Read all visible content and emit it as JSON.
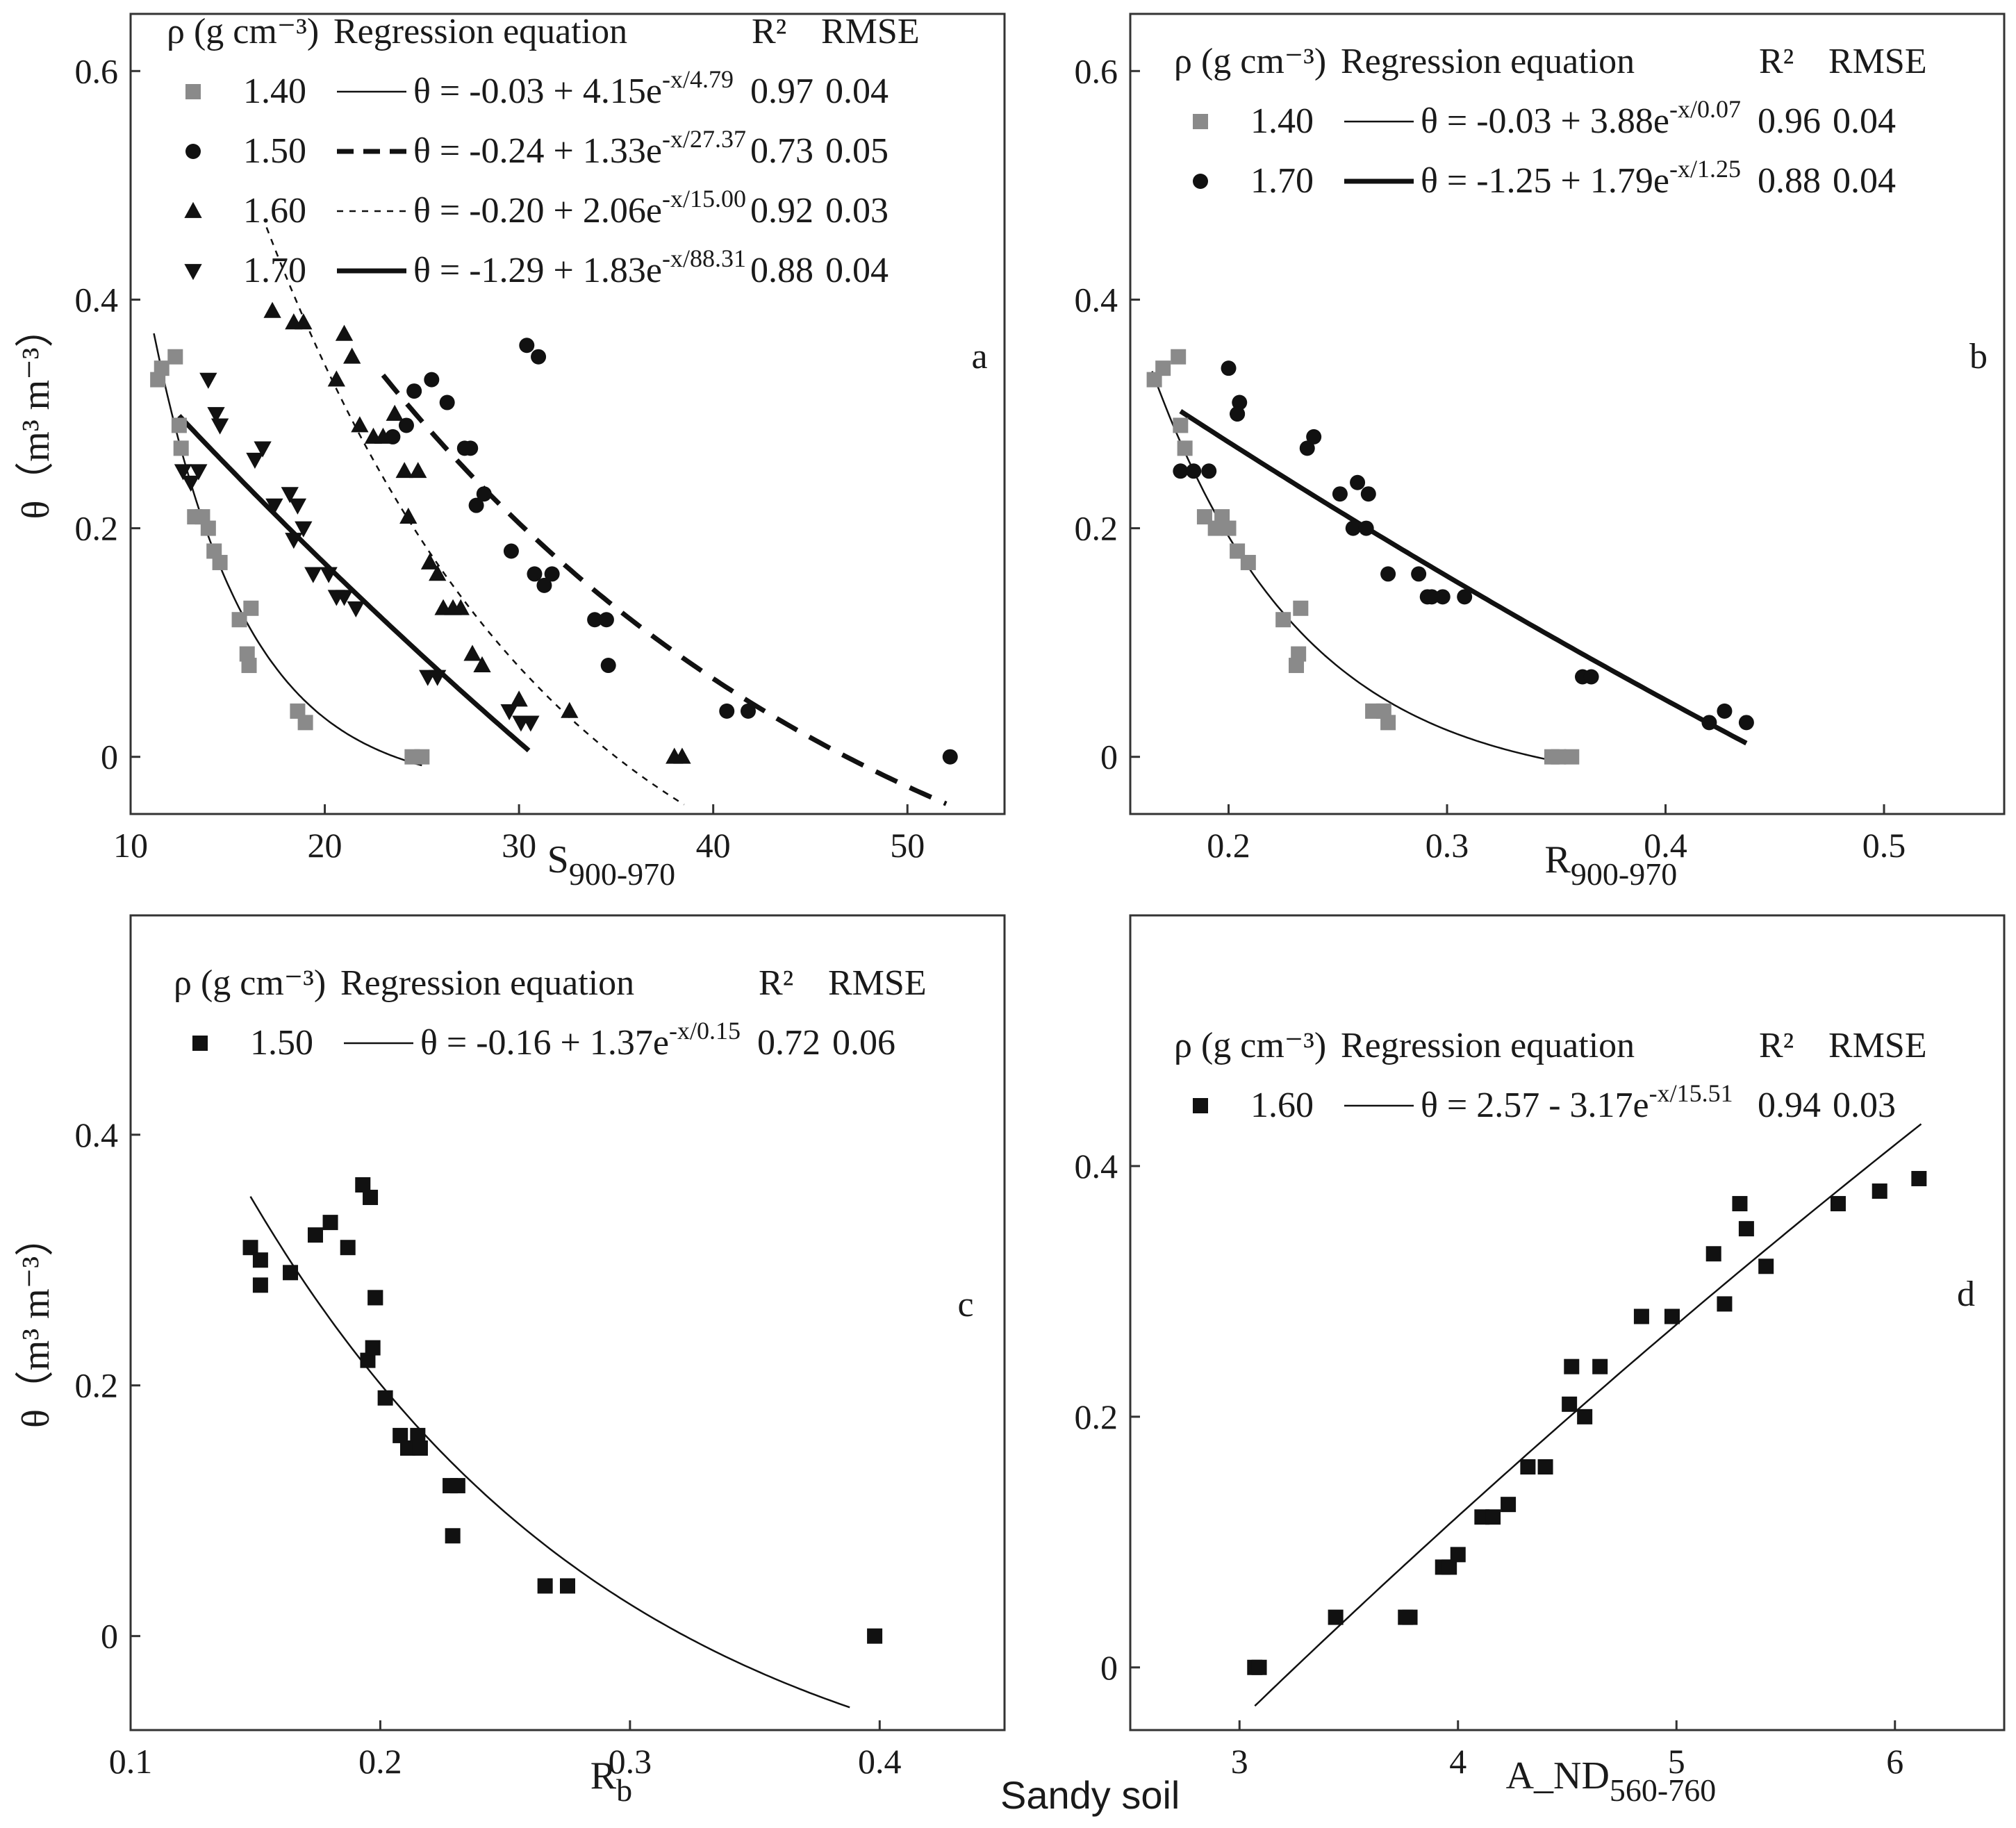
{
  "caption": "Sandy soil",
  "colors": {
    "gray": "#8a8a8a",
    "black": "#111111",
    "axis": "#333333"
  },
  "chart_data": [
    {
      "id": "a",
      "type": "scatter",
      "panel_label": "a",
      "xlabel": "S",
      "xlabel_sub": "900-970",
      "ylabel": "θ（m³ m⁻³）",
      "xlim": [
        10,
        55
      ],
      "ylim": [
        -0.05,
        0.65
      ],
      "xticks": [
        10,
        20,
        30,
        40,
        50
      ],
      "yticks": [
        0,
        0.2,
        0.4,
        0.6
      ],
      "legend_header": {
        "rho": "ρ (g cm⁻³)",
        "eq": "Regression equation",
        "r2": "R²",
        "rmse": "RMSE"
      },
      "series": [
        {
          "name": "1.40",
          "marker": "square",
          "color": "#8a8a8a",
          "line": "thin",
          "eq_text": "θ = -0.03 + 4.15e",
          "eq_exp": "-x/4.79",
          "r2": "0.97",
          "rmse": "0.04",
          "fit": {
            "a": -0.03,
            "b": 4.15,
            "c": 4.79,
            "x0": 11.2,
            "x1": 25
          },
          "x": [
            11.4,
            11.6,
            12.3,
            12.5,
            12.6,
            13.3,
            13.7,
            14.0,
            14.3,
            14.6,
            15.6,
            16.2,
            16.0,
            16.1,
            18.6,
            19.0,
            24.5,
            25.0
          ],
          "y": [
            0.33,
            0.34,
            0.35,
            0.29,
            0.27,
            0.21,
            0.21,
            0.2,
            0.18,
            0.17,
            0.12,
            0.13,
            0.09,
            0.08,
            0.04,
            0.03,
            0.0,
            0.0
          ]
        },
        {
          "name": "1.50",
          "marker": "circle",
          "color": "#111111",
          "line": "dashed",
          "eq_text": "θ = -0.24 + 1.33e",
          "eq_exp": "-x/27.37",
          "r2": "0.73",
          "rmse": "0.05",
          "fit": {
            "a": -0.24,
            "b": 1.33,
            "c": 27.37,
            "x0": 23,
            "x1": 52
          },
          "x": [
            23.5,
            24.2,
            24.6,
            25.5,
            26.3,
            27.2,
            27.5,
            27.8,
            28.2,
            29.6,
            30.4,
            30.8,
            31.0,
            31.3,
            31.7,
            33.9,
            34.5,
            34.6,
            40.7,
            41.8,
            52.2
          ],
          "y": [
            0.28,
            0.29,
            0.32,
            0.33,
            0.31,
            0.27,
            0.27,
            0.22,
            0.23,
            0.18,
            0.36,
            0.16,
            0.35,
            0.15,
            0.16,
            0.12,
            0.12,
            0.08,
            0.04,
            0.04,
            0.0
          ]
        },
        {
          "name": "1.60",
          "marker": "triangle",
          "color": "#111111",
          "line": "dotted",
          "eq_text": "θ = -0.20 + 2.06e",
          "eq_exp": "-x/15.00",
          "r2": "0.92",
          "rmse": "0.03",
          "fit": {
            "a": -0.2,
            "b": 2.06,
            "c": 15.0,
            "x0": 17,
            "x1": 38.5
          },
          "x": [
            17.3,
            18.4,
            18.9,
            20.6,
            21.0,
            21.4,
            21.8,
            22.5,
            23.0,
            23.6,
            24.1,
            24.3,
            24.8,
            25.4,
            25.8,
            26.1,
            26.6,
            27.0,
            27.6,
            28.1,
            30.0,
            32.6,
            38.0,
            38.4
          ],
          "y": [
            0.39,
            0.38,
            0.38,
            0.33,
            0.37,
            0.35,
            0.29,
            0.28,
            0.28,
            0.3,
            0.25,
            0.21,
            0.25,
            0.17,
            0.16,
            0.13,
            0.13,
            0.13,
            0.09,
            0.08,
            0.05,
            0.04,
            0.0,
            0.0
          ]
        },
        {
          "name": "1.70",
          "marker": "triangle-down",
          "color": "#111111",
          "line": "bold",
          "eq_text": "θ = -1.29 + 1.83e",
          "eq_exp": "-x/88.31",
          "r2": "0.88",
          "rmse": "0.04",
          "fit": {
            "a": -1.29,
            "b": 1.83,
            "c": 88.31,
            "x0": 12.5,
            "x1": 30.5
          },
          "x": [
            12.7,
            13.1,
            13.5,
            14.0,
            14.4,
            14.6,
            16.4,
            16.8,
            17.4,
            18.2,
            18.4,
            18.6,
            18.9,
            19.4,
            20.2,
            20.6,
            21.0,
            21.6,
            25.3,
            25.8,
            29.5,
            30.1,
            30.6
          ],
          "y": [
            0.25,
            0.24,
            0.25,
            0.33,
            0.3,
            0.29,
            0.26,
            0.27,
            0.22,
            0.23,
            0.19,
            0.22,
            0.2,
            0.16,
            0.16,
            0.14,
            0.14,
            0.13,
            0.07,
            0.07,
            0.04,
            0.03,
            0.03
          ]
        }
      ]
    },
    {
      "id": "b",
      "type": "scatter",
      "panel_label": "b",
      "xlabel": "R",
      "xlabel_sub": "900-970",
      "ylabel": "",
      "xlim": [
        0.155,
        0.555
      ],
      "ylim": [
        -0.05,
        0.65
      ],
      "xticks": [
        0.2,
        0.3,
        0.4,
        0.5
      ],
      "yticks": [
        0,
        0.2,
        0.4,
        0.6
      ],
      "legend_header": {
        "rho": "ρ (g cm⁻³)",
        "eq": "Regression equation",
        "r2": "R²",
        "rmse": "RMSE"
      },
      "series": [
        {
          "name": "1.40",
          "marker": "square",
          "color": "#8a8a8a",
          "line": "thin",
          "eq_text": "θ = -0.03 + 3.88e",
          "eq_exp": "-x/0.07",
          "r2": "0.96",
          "rmse": "0.04",
          "fit": {
            "a": -0.03,
            "b": 3.88,
            "c": 0.07,
            "x0": 0.165,
            "x1": 0.355
          },
          "x": [
            0.166,
            0.17,
            0.177,
            0.178,
            0.18,
            0.189,
            0.194,
            0.197,
            0.2,
            0.204,
            0.209,
            0.225,
            0.233,
            0.232,
            0.231,
            0.266,
            0.271,
            0.273,
            0.348,
            0.351,
            0.357
          ],
          "y": [
            0.33,
            0.34,
            0.35,
            0.29,
            0.27,
            0.21,
            0.2,
            0.21,
            0.2,
            0.18,
            0.17,
            0.12,
            0.13,
            0.09,
            0.08,
            0.04,
            0.04,
            0.03,
            0.0,
            0.0,
            0.0
          ]
        },
        {
          "name": "1.70",
          "marker": "circle",
          "color": "#111111",
          "line": "bold",
          "eq_text": "θ = -1.25 + 1.79e",
          "eq_exp": "-x/1.25",
          "r2": "0.88",
          "rmse": "0.04",
          "fit": {
            "a": -1.25,
            "b": 1.79,
            "c": 1.25,
            "x0": 0.178,
            "x1": 0.437
          },
          "x": [
            0.178,
            0.184,
            0.191,
            0.2,
            0.204,
            0.205,
            0.204,
            0.236,
            0.239,
            0.251,
            0.257,
            0.259,
            0.264,
            0.263,
            0.273,
            0.287,
            0.291,
            0.293,
            0.298,
            0.308,
            0.362,
            0.366,
            0.42,
            0.427,
            0.437
          ],
          "y": [
            0.25,
            0.25,
            0.25,
            0.34,
            0.3,
            0.31,
            0.3,
            0.27,
            0.28,
            0.23,
            0.2,
            0.24,
            0.23,
            0.2,
            0.16,
            0.16,
            0.14,
            0.14,
            0.14,
            0.14,
            0.07,
            0.07,
            0.03,
            0.04,
            0.03
          ]
        }
      ]
    },
    {
      "id": "c",
      "type": "scatter",
      "panel_label": "c",
      "xlabel": "R",
      "xlabel_sub": "b",
      "ylabel": "θ（m³ m⁻³）",
      "xlim": [
        0.1,
        0.45
      ],
      "ylim": [
        -0.075,
        0.575
      ],
      "xticks": [
        0.1,
        0.2,
        0.3,
        0.4
      ],
      "yticks": [
        0,
        0.2,
        0.4
      ],
      "legend_header": {
        "rho": "ρ (g cm⁻³)",
        "eq": "Regression equation",
        "r2": "R²",
        "rmse": "RMSE"
      },
      "series": [
        {
          "name": "1.50",
          "marker": "square",
          "color": "#111111",
          "line": "thin",
          "eq_text": "θ = -0.16 + 1.37e",
          "eq_exp": "-x/0.15",
          "r2": "0.72",
          "rmse": "0.06",
          "fit": {
            "a": -0.16,
            "b": 1.37,
            "c": 0.15,
            "x0": 0.148,
            "x1": 0.388
          },
          "x": [
            0.148,
            0.152,
            0.152,
            0.164,
            0.174,
            0.18,
            0.187,
            0.193,
            0.196,
            0.198,
            0.198,
            0.195,
            0.197,
            0.202,
            0.208,
            0.211,
            0.215,
            0.216,
            0.228,
            0.231,
            0.229,
            0.266,
            0.275,
            0.398
          ],
          "y": [
            0.31,
            0.3,
            0.28,
            0.29,
            0.32,
            0.33,
            0.31,
            0.36,
            0.35,
            0.27,
            0.27,
            0.22,
            0.23,
            0.19,
            0.16,
            0.15,
            0.16,
            0.15,
            0.12,
            0.12,
            0.08,
            0.04,
            0.04,
            0.0
          ]
        }
      ]
    },
    {
      "id": "d",
      "type": "scatter",
      "panel_label": "d",
      "xlabel": "A_ND",
      "xlabel_sub": "560-760",
      "ylabel": "",
      "xlim": [
        2.5,
        6.5
      ],
      "ylim": [
        -0.05,
        0.6
      ],
      "xticks": [
        3,
        4,
        5,
        6
      ],
      "yticks": [
        0,
        0.2,
        0.4
      ],
      "legend_header": {
        "rho": "ρ (g cm⁻³)",
        "eq": "Regression equation",
        "r2": "R²",
        "rmse": "RMSE"
      },
      "series": [
        {
          "name": "1.60",
          "marker": "square",
          "color": "#111111",
          "line": "thin",
          "eq_text": "θ = 2.57 - 3.17e",
          "eq_exp": "-x/15.51",
          "r2": "0.94",
          "rmse": "0.03",
          "fit": {
            "a": 2.57,
            "b": -3.17,
            "c": 15.51,
            "x0": 3.07,
            "x1": 6.12
          },
          "x": [
            3.07,
            3.09,
            3.44,
            3.76,
            3.78,
            3.93,
            3.96,
            4.0,
            4.11,
            4.16,
            4.23,
            4.32,
            4.4,
            4.51,
            4.52,
            4.58,
            4.65,
            4.84,
            4.98,
            5.17,
            5.22,
            5.29,
            5.32,
            5.41,
            5.74,
            5.93,
            6.11
          ],
          "y": [
            0.0,
            0.0,
            0.04,
            0.04,
            0.04,
            0.08,
            0.08,
            0.09,
            0.12,
            0.12,
            0.13,
            0.16,
            0.16,
            0.21,
            0.24,
            0.2,
            0.24,
            0.28,
            0.28,
            0.33,
            0.29,
            0.37,
            0.35,
            0.32,
            0.37,
            0.38,
            0.39
          ]
        }
      ]
    }
  ]
}
